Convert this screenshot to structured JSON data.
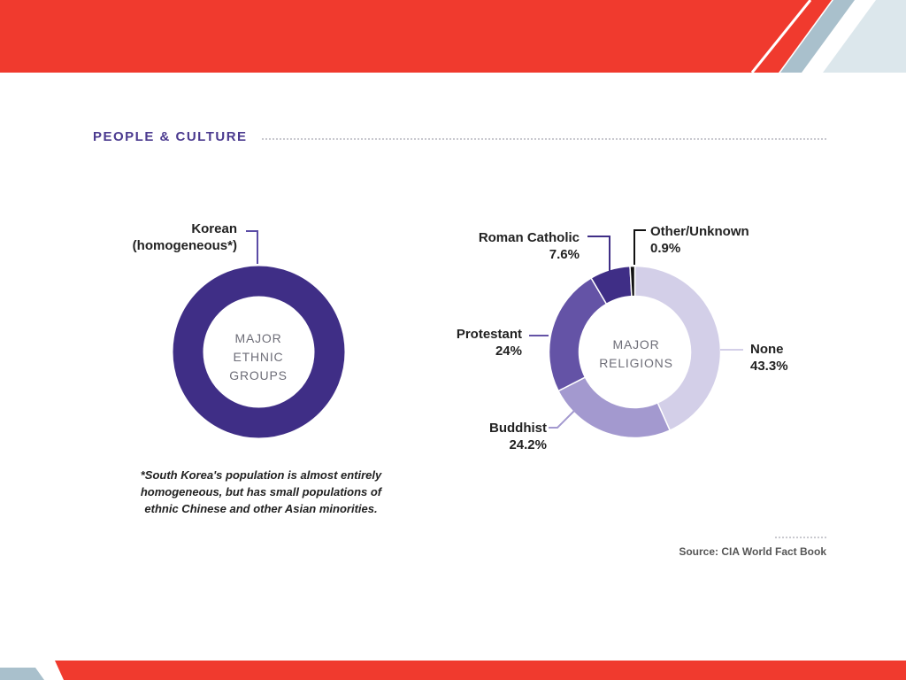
{
  "section": {
    "title": "PEOPLE & CULTURE"
  },
  "chart_data": [
    {
      "type": "pie",
      "center_label": [
        "MAJOR",
        "ETHNIC",
        "GROUPS"
      ],
      "slices": [
        {
          "label_line1": "Korean",
          "label_line2": "(homogeneous*)",
          "value": 100,
          "color": "#3f2e86"
        }
      ],
      "footnote": "*South Korea's population is almost entirely homogeneous, but has small populations of ethnic Chinese and other Asian minorities."
    },
    {
      "type": "pie",
      "center_label": [
        "MAJOR",
        "RELIGIONS"
      ],
      "slices": [
        {
          "label": "None",
          "value_text": "43.3%",
          "value": 43.3,
          "color": "#d3cfe8"
        },
        {
          "label": "Buddhist",
          "value_text": "24.2%",
          "value": 24.2,
          "color": "#a399cf"
        },
        {
          "label": "Protestant",
          "value_text": "24%",
          "value": 24,
          "color": "#6453a6"
        },
        {
          "label": "Roman Catholic",
          "value_text": "7.6%",
          "value": 7.6,
          "color": "#3f2e86"
        },
        {
          "label": "Other/Unknown",
          "value_text": "0.9%",
          "value": 0.9,
          "color": "#111111"
        }
      ]
    }
  ],
  "source": "Source: CIA World Fact Book",
  "colors": {
    "red": "#f03a2e",
    "purple": "#3f2e86",
    "steel": "#a9c0cc",
    "pale": "#dce7ec"
  }
}
